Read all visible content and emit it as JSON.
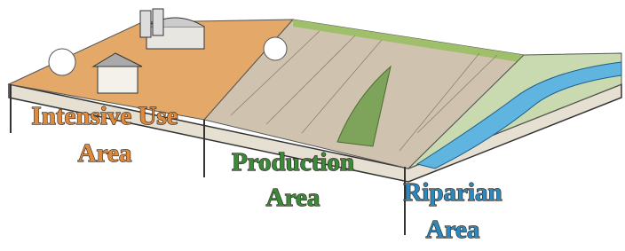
{
  "zones": [
    {
      "label_lines": [
        "Intensive Use",
        "Area"
      ]
    },
    {
      "label_lines": [
        "Production",
        "Area"
      ]
    },
    {
      "label_lines": [
        "Riparian",
        "Area"
      ]
    }
  ]
}
